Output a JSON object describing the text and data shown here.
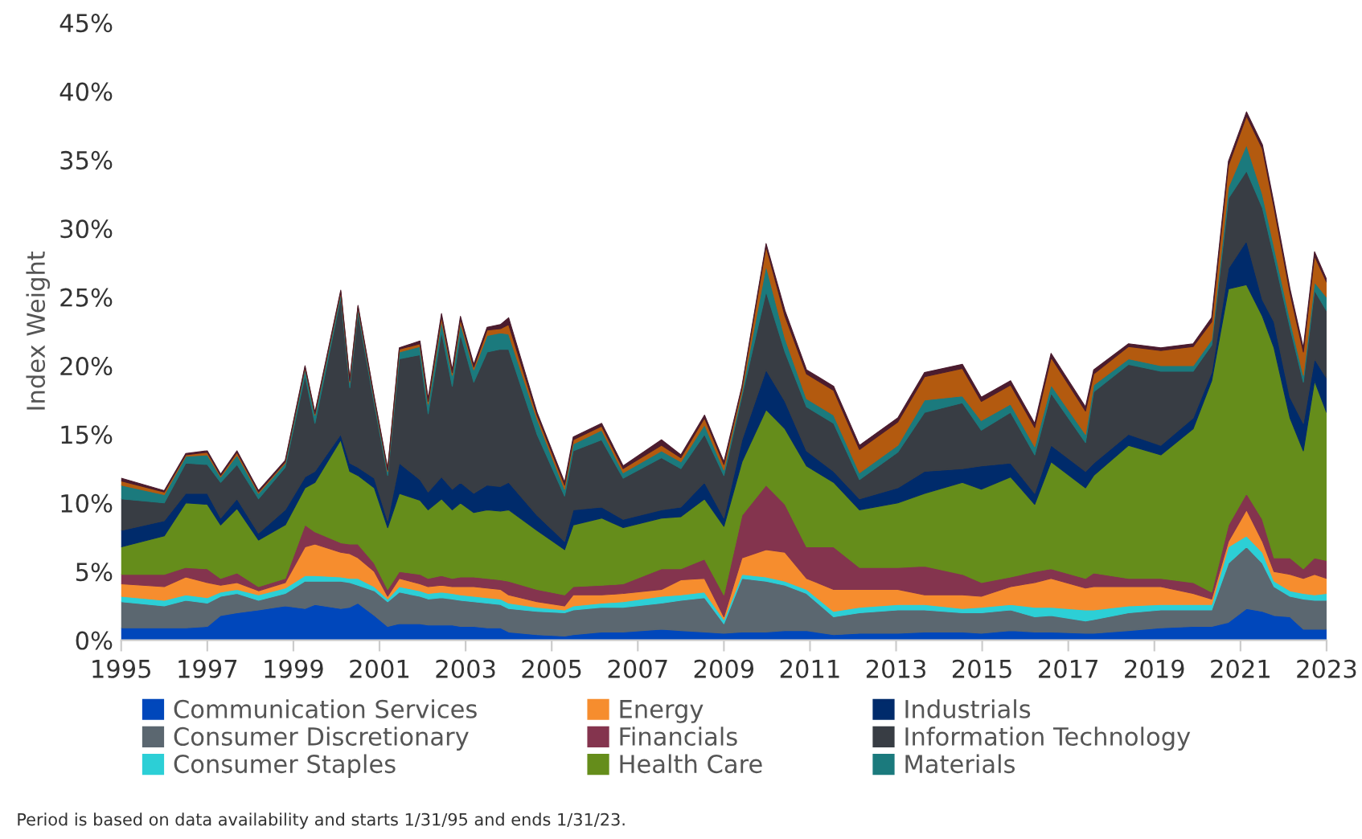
{
  "chart_data": {
    "type": "area",
    "stacked": true,
    "ylabel": "Index Weight",
    "x": [
      1995.0,
      1996.0,
      1996.5,
      1997.0,
      1997.31,
      1997.69,
      1998.19,
      1998.81,
      1999.27,
      1999.5,
      2000.1,
      2000.31,
      2000.5,
      2000.88,
      2001.19,
      2001.46,
      2001.94,
      2002.13,
      2002.44,
      2002.69,
      2002.88,
      2003.19,
      2003.5,
      2003.81,
      2004.0,
      2004.66,
      2005.3,
      2005.5,
      2006.16,
      2006.66,
      2007.55,
      2008.0,
      2008.55,
      2009.0,
      2009.42,
      2009.98,
      2010.42,
      2010.92,
      2011.55,
      2012.15,
      2013.04,
      2013.66,
      2014.54,
      2014.98,
      2015.66,
      2016.22,
      2016.6,
      2017.4,
      2017.59,
      2018.4,
      2019.15,
      2019.9,
      2020.33,
      2020.72,
      2021.14,
      2021.51,
      2021.78,
      2022.15,
      2022.46,
      2022.72,
      2023.0
    ],
    "xlim": [
      1995,
      2023
    ],
    "xticks": [
      1995,
      1997,
      1999,
      2001,
      2003,
      2005,
      2007,
      2009,
      2011,
      2013,
      2015,
      2017,
      2019,
      2021,
      2023
    ],
    "ylim": [
      0,
      45
    ],
    "yticks": [
      {
        "value": 0,
        "label": "0%"
      },
      {
        "value": 5,
        "label": "5%"
      },
      {
        "value": 10,
        "label": "10%"
      },
      {
        "value": 15,
        "label": "15%"
      },
      {
        "value": 20,
        "label": "20%"
      },
      {
        "value": 25,
        "label": "25%"
      },
      {
        "value": 30,
        "label": "30%"
      },
      {
        "value": 35,
        "label": "35%"
      },
      {
        "value": 40,
        "label": "40%"
      },
      {
        "value": 45,
        "label": "45%"
      }
    ],
    "grid": false,
    "legend": "bottom",
    "annotations": [
      "Period is based on data availability and starts 1/31/95 and ends 1/31/23."
    ],
    "series": [
      {
        "name": "Communication Services",
        "color": "#0047bb",
        "values": [
          0.9,
          0.9,
          0.9,
          1.0,
          1.8,
          2.0,
          2.2,
          2.5,
          2.3,
          2.6,
          2.3,
          2.4,
          2.7,
          1.8,
          1.0,
          1.2,
          1.2,
          1.1,
          1.1,
          1.1,
          1.0,
          1.0,
          0.9,
          0.9,
          0.6,
          0.4,
          0.3,
          0.4,
          0.6,
          0.6,
          0.8,
          0.7,
          0.6,
          0.5,
          0.6,
          0.6,
          0.7,
          0.7,
          0.4,
          0.5,
          0.5,
          0.6,
          0.6,
          0.5,
          0.7,
          0.6,
          0.6,
          0.5,
          0.5,
          0.7,
          0.9,
          1.0,
          1.0,
          1.3,
          2.3,
          2.1,
          1.8,
          1.7,
          0.8,
          0.8,
          0.8
        ]
      },
      {
        "name": "Consumer Discretionary",
        "color": "#5b6770",
        "values": [
          1.9,
          1.6,
          2.0,
          1.7,
          1.4,
          1.4,
          0.7,
          0.9,
          2.0,
          1.7,
          2.0,
          1.8,
          1.3,
          1.8,
          1.8,
          2.3,
          2.0,
          1.9,
          2.0,
          1.9,
          1.9,
          1.8,
          1.8,
          1.7,
          1.7,
          1.7,
          1.7,
          1.8,
          1.8,
          1.8,
          1.9,
          2.2,
          2.5,
          0.7,
          3.9,
          3.7,
          3.3,
          2.7,
          1.3,
          1.5,
          1.7,
          1.6,
          1.4,
          1.5,
          1.5,
          1.1,
          1.2,
          0.9,
          1.0,
          1.3,
          1.3,
          1.2,
          1.2,
          4.3,
          4.5,
          3.5,
          2.1,
          1.5,
          2.2,
          2.1,
          2.1
        ]
      },
      {
        "name": "Consumer Staples",
        "color": "#2ccfd6",
        "values": [
          0.4,
          0.4,
          0.4,
          0.4,
          0.3,
          0.3,
          0.4,
          0.4,
          0.4,
          0.4,
          0.3,
          0.3,
          0.5,
          0.3,
          0.2,
          0.4,
          0.4,
          0.4,
          0.4,
          0.4,
          0.4,
          0.4,
          0.4,
          0.4,
          0.4,
          0.3,
          0.2,
          0.3,
          0.3,
          0.4,
          0.5,
          0.4,
          0.4,
          0.3,
          0.3,
          0.3,
          0.3,
          0.3,
          0.4,
          0.4,
          0.4,
          0.4,
          0.3,
          0.4,
          0.4,
          0.7,
          0.6,
          0.8,
          0.7,
          0.5,
          0.4,
          0.4,
          0.4,
          1.2,
          0.8,
          0.8,
          0.4,
          0.4,
          0.4,
          0.4,
          0.5
        ]
      },
      {
        "name": "Energy",
        "color": "#f68d2e",
        "values": [
          0.9,
          1.0,
          1.3,
          1.1,
          0.5,
          0.5,
          0.3,
          0.4,
          2.1,
          2.3,
          1.8,
          1.8,
          1.5,
          1.1,
          0.2,
          0.6,
          0.5,
          0.5,
          0.5,
          0.5,
          0.6,
          0.7,
          0.7,
          0.7,
          0.6,
          0.4,
          0.3,
          0.8,
          0.6,
          0.6,
          0.5,
          1.1,
          1.0,
          0.2,
          1.2,
          2.0,
          2.1,
          0.8,
          1.6,
          1.3,
          1.1,
          0.7,
          1.0,
          0.8,
          1.3,
          1.8,
          2.1,
          1.6,
          1.7,
          1.4,
          1.3,
          0.8,
          0.4,
          0.4,
          1.9,
          0.8,
          0.7,
          1.2,
          1.1,
          1.5,
          1.1
        ]
      },
      {
        "name": "Financials",
        "color": "#84344e",
        "values": [
          0.7,
          0.9,
          0.7,
          1.0,
          0.5,
          0.7,
          0.3,
          0.3,
          1.6,
          0.9,
          0.7,
          0.7,
          1.0,
          0.6,
          0.5,
          0.5,
          0.7,
          0.6,
          0.7,
          0.6,
          0.7,
          0.7,
          0.7,
          0.7,
          1.0,
          0.9,
          0.8,
          0.6,
          0.7,
          0.7,
          1.5,
          0.8,
          1.4,
          1.6,
          3.1,
          4.7,
          3.5,
          2.3,
          3.1,
          1.6,
          1.6,
          2.1,
          1.5,
          1.0,
          0.7,
          0.8,
          0.7,
          0.7,
          1.0,
          0.6,
          0.6,
          0.8,
          0.5,
          1.2,
          1.2,
          1.6,
          1.0,
          1.2,
          0.7,
          1.2,
          1.3
        ]
      },
      {
        "name": "Health Care",
        "color": "#658d1b",
        "values": [
          2.0,
          2.8,
          4.7,
          4.7,
          3.9,
          4.7,
          3.4,
          3.9,
          2.7,
          3.6,
          7.5,
          5.3,
          5.0,
          5.5,
          4.5,
          5.7,
          5.4,
          5.0,
          5.6,
          5.0,
          5.4,
          4.7,
          5.0,
          5.0,
          5.2,
          4.3,
          3.3,
          4.5,
          4.9,
          4.1,
          3.7,
          3.8,
          4.4,
          5.0,
          3.9,
          5.5,
          5.5,
          5.9,
          4.7,
          4.2,
          4.7,
          5.3,
          6.7,
          6.8,
          7.3,
          4.9,
          7.8,
          6.6,
          7.1,
          9.7,
          9.0,
          11.2,
          15.4,
          17.2,
          15.2,
          14.8,
          15.3,
          10.2,
          8.6,
          12.9,
          10.8
        ]
      },
      {
        "name": "Industrials",
        "color": "#002b6b",
        "values": [
          1.2,
          1.1,
          0.7,
          0.8,
          0.5,
          0.7,
          0.5,
          1.1,
          0.8,
          0.8,
          0.4,
          0.6,
          0.6,
          0.7,
          0.5,
          2.2,
          1.5,
          1.3,
          1.6,
          1.5,
          1.5,
          1.4,
          1.8,
          1.8,
          2.0,
          1.1,
          0.6,
          1.1,
          0.8,
          0.6,
          0.6,
          0.7,
          1.2,
          0.6,
          1.6,
          2.9,
          2.0,
          1.1,
          0.8,
          0.8,
          1.1,
          1.6,
          1.0,
          1.7,
          1.0,
          0.8,
          1.2,
          1.2,
          0.9,
          0.8,
          0.7,
          0.8,
          0.6,
          1.5,
          3.2,
          1.2,
          1.9,
          1.5,
          2.0,
          1.6,
          2.5
        ]
      },
      {
        "name": "Information Technology",
        "color": "#383d44",
        "values": [
          2.3,
          1.3,
          2.2,
          2.1,
          2.6,
          2.5,
          2.5,
          3.1,
          7.4,
          3.5,
          10.0,
          5.5,
          11.3,
          5.4,
          3.3,
          7.6,
          9.1,
          5.7,
          10.6,
          7.5,
          10.8,
          8.1,
          9.7,
          10.0,
          9.7,
          5.9,
          3.3,
          4.3,
          4.9,
          3.0,
          3.8,
          2.8,
          3.5,
          3.1,
          3.2,
          5.7,
          3.6,
          3.2,
          3.5,
          1.4,
          2.6,
          4.3,
          4.8,
          2.6,
          3.7,
          2.8,
          3.8,
          2.1,
          5.2,
          5.1,
          5.4,
          3.4,
          2.0,
          5.1,
          5.1,
          6.7,
          4.7,
          5.1,
          3.0,
          5.0,
          4.9
        ]
      },
      {
        "name": "Materials",
        "color": "#1b7a7d",
        "values": [
          1.0,
          0.6,
          0.5,
          0.7,
          0.4,
          0.7,
          0.4,
          0.3,
          0.5,
          0.6,
          0.3,
          0.4,
          0.3,
          0.3,
          0.3,
          0.5,
          0.6,
          0.7,
          0.8,
          0.8,
          0.8,
          0.9,
          1.2,
          1.2,
          1.1,
          1.1,
          0.5,
          0.5,
          0.7,
          0.4,
          0.5,
          0.5,
          0.7,
          0.4,
          0.3,
          1.9,
          1.0,
          0.6,
          0.6,
          0.5,
          0.5,
          0.9,
          0.5,
          0.7,
          0.6,
          0.6,
          0.6,
          0.6,
          0.5,
          0.4,
          0.4,
          0.4,
          0.4,
          0.8,
          1.9,
          1.0,
          0.8,
          0.6,
          0.5,
          0.6,
          1.0
        ]
      },
      {
        "color": "#b35a0f",
        "values": [
          0.3,
          0.2,
          0.1,
          0.2,
          0.1,
          0.2,
          0.1,
          0.1,
          0.1,
          0.1,
          0.1,
          0.1,
          0.1,
          0.1,
          0.1,
          0.2,
          0.2,
          0.2,
          0.3,
          0.2,
          0.3,
          0.2,
          0.4,
          0.3,
          0.7,
          0.3,
          0.3,
          0.3,
          0.3,
          0.3,
          0.4,
          0.3,
          0.5,
          0.4,
          0.3,
          1.4,
          1.6,
          1.8,
          1.8,
          1.7,
          1.7,
          1.7,
          2.0,
          1.4,
          1.4,
          1.4,
          2.0,
          1.7,
          0.8,
          0.9,
          1.1,
          1.4,
          1.3,
          1.6,
          2.1,
          3.3,
          2.8,
          1.9,
          1.7,
          1.9,
          1.1
        ]
      },
      {
        "color": "#4b1c2e",
        "values": [
          0.2,
          0.1,
          0.1,
          0.1,
          0.1,
          0.1,
          0.1,
          0.1,
          0.1,
          0.1,
          0.1,
          0.1,
          0.1,
          0.1,
          0.1,
          0.1,
          0.2,
          0.2,
          0.2,
          0.2,
          0.2,
          0.2,
          0.2,
          0.3,
          0.5,
          0.2,
          0.2,
          0.2,
          0.2,
          0.2,
          0.4,
          0.2,
          0.2,
          0.2,
          0.1,
          0.2,
          0.4,
          0.3,
          0.3,
          0.3,
          0.3,
          0.3,
          0.3,
          0.3,
          0.3,
          0.3,
          0.3,
          0.3,
          0.3,
          0.2,
          0.2,
          0.2,
          0.3,
          0.3,
          0.3,
          0.3,
          0.3,
          0.3,
          0.3,
          0.3,
          0.2
        ]
      }
    ]
  }
}
